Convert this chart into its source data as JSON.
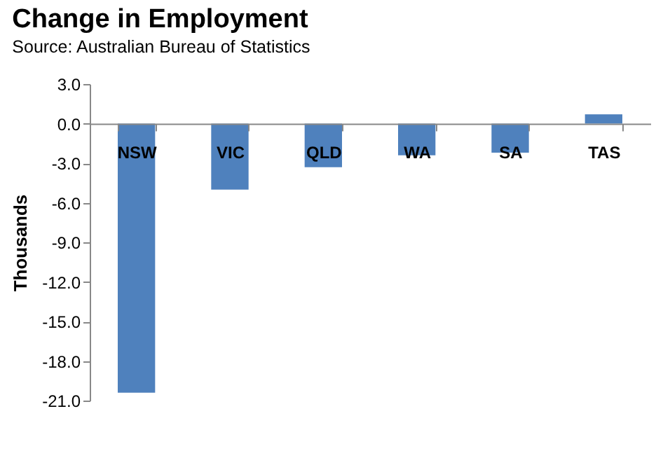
{
  "chart_data": {
    "type": "bar",
    "title": "Change in Employment",
    "annotations": [
      "Source: Australian Bureau of Statistics"
    ],
    "ylabel": "Thousands",
    "categories": [
      "NSW",
      "VIC",
      "QLD",
      "WA",
      "SA",
      "TAS"
    ],
    "series": [
      {
        "color": "#4f81bd",
        "values": [
          -20.4,
          -5.0,
          -3.3,
          -2.4,
          -2.2,
          0.7
        ]
      }
    ],
    "ylim": [
      -21,
      3
    ],
    "yticks": [
      {
        "value": -21,
        "label": "-21.0"
      },
      {
        "value": -18,
        "label": "-18.0"
      },
      {
        "value": -15,
        "label": "-15.0"
      },
      {
        "value": -12,
        "label": "-12.0"
      },
      {
        "value": -9,
        "label": "-9.0"
      },
      {
        "value": -6,
        "label": "-6.0"
      },
      {
        "value": -3,
        "label": "-3.0"
      },
      {
        "value": 0,
        "label": "0.0"
      },
      {
        "value": 3,
        "label": "3.0"
      }
    ],
    "grid": false,
    "legend": false
  }
}
